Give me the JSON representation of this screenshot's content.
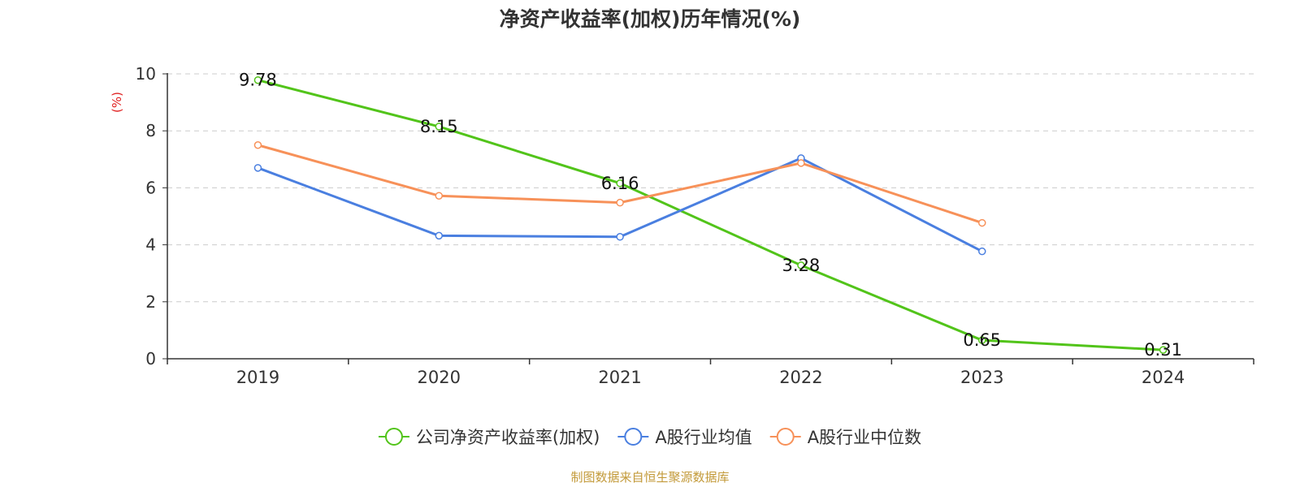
{
  "chart_data": {
    "type": "line",
    "title": "净资产收益率(加权)历年情况(%)",
    "ylabel": "(%)",
    "xlabel": "",
    "categories": [
      "2019",
      "2020",
      "2021",
      "2022",
      "2023",
      "2024"
    ],
    "ylim": [
      0,
      10
    ],
    "yticks": [
      "0",
      "2",
      "4",
      "6",
      "8",
      "10"
    ],
    "grid": true,
    "legend_position": "bottom-center",
    "series": [
      {
        "name": "公司净资产收益率(加权)",
        "color": "#52c41a",
        "values": [
          9.78,
          8.15,
          6.16,
          3.28,
          0.65,
          0.31
        ],
        "data_labels": [
          "9.78",
          "8.15",
          "6.16",
          "3.28",
          "0.65",
          "0.31"
        ]
      },
      {
        "name": "A股行业均值",
        "color": "#4a7fe0",
        "values": [
          6.7,
          4.32,
          4.28,
          7.04,
          3.77,
          null
        ]
      },
      {
        "name": "A股行业中位数",
        "color": "#f79159",
        "values": [
          7.5,
          5.72,
          5.48,
          6.87,
          4.77,
          null
        ]
      }
    ]
  },
  "footer": {
    "source": "制图数据来自恒生聚源数据库"
  }
}
